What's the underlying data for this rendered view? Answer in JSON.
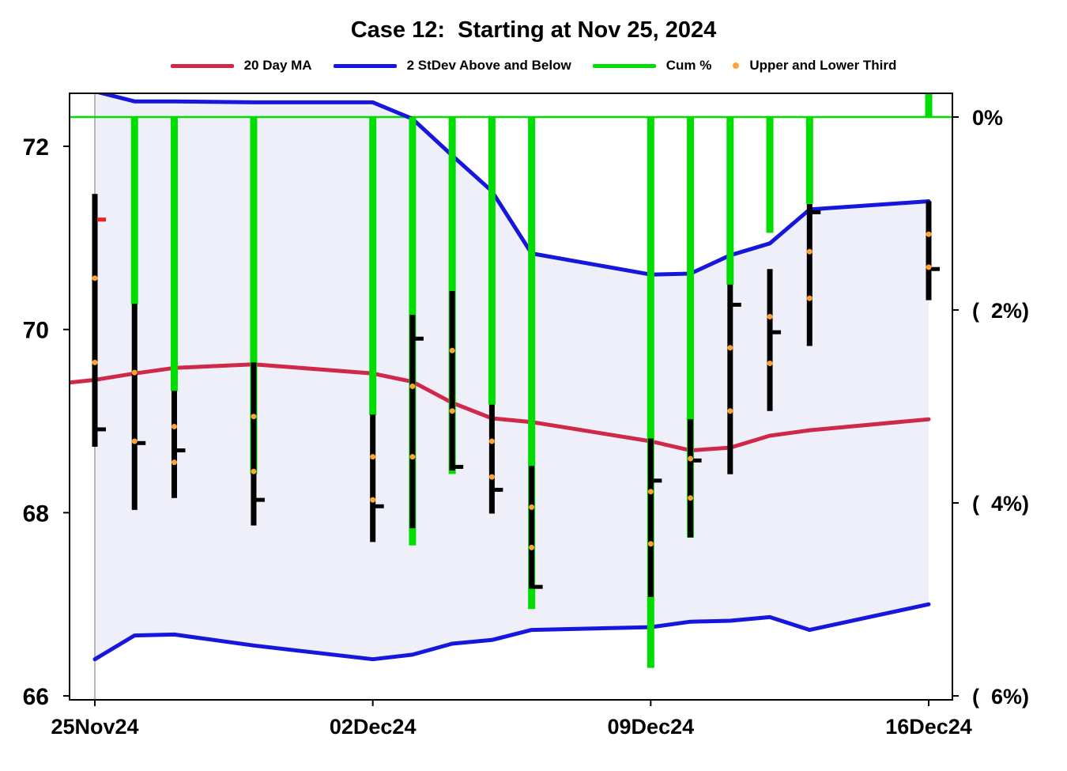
{
  "title": "Case 12:  Starting at Nov 25, 2024",
  "legend": [
    {
      "label": "20 Day MA",
      "color": "#d02848",
      "swatch": "line"
    },
    {
      "label": "2 StDev Above and Below",
      "color": "#1616dd",
      "swatch": "line"
    },
    {
      "label": "Cum %",
      "color": "#00dd00",
      "swatch": "line"
    },
    {
      "label": "Upper and Lower Third",
      "color": "#ffa233",
      "swatch": "dot"
    }
  ],
  "chart_data": {
    "type": "candlestick",
    "title": "Case 12:  Starting at Nov 25, 2024",
    "description": "Daily high-low price bars with close ticks, upper/lower third dots, 20-day moving average, 2-standard-deviation band (shaded), and cumulative % change bars hanging from the 0% line.",
    "x_axis": {
      "tick_labels": [
        "25Nov24",
        "02Dec24",
        "09Dec24",
        "16Dec24"
      ],
      "tick_offsets": [
        0,
        7,
        14,
        21
      ],
      "unit": "calendar days since 25Nov24"
    },
    "price_axis": {
      "side": "left",
      "ticks": [
        66,
        68,
        70,
        72
      ],
      "top_value": 72.58,
      "bottom_value": 65.96
    },
    "pct_axis": {
      "side": "right",
      "tick_labels": [
        "0%",
        "(  2%)",
        "(  4%)",
        "(  6%)"
      ],
      "tick_values": [
        0,
        -2,
        -4,
        -6
      ]
    },
    "start_refline_offset": 0,
    "zero_line_pct": 0,
    "colors": {
      "ma": "#d02848",
      "stdev": "#1616dd",
      "cum": "#00dd00",
      "thirds": "#ffa233",
      "bar": "#000000",
      "red_tick": "#ee2222",
      "band_fill": "#efeffa",
      "refline": "#a3a3a3",
      "frame": "#000000"
    },
    "days": [
      {
        "date": "25Nov24",
        "offset": 0,
        "high": 71.48,
        "low": 68.72,
        "close_tick": 68.91,
        "red_tick": 71.2,
        "cum_pct": 0,
        "upper_third": 70.56,
        "lower_third": 69.64
      },
      {
        "date": "26Nov24",
        "offset": 1,
        "high": 70.28,
        "low": 68.03,
        "close_tick": 68.76,
        "cum_pct": -1.94,
        "upper_third": 69.53,
        "lower_third": 68.78
      },
      {
        "date": "27Nov24",
        "offset": 2,
        "high": 69.33,
        "low": 68.16,
        "close_tick": 68.68,
        "cum_pct": -2.84,
        "upper_third": 68.94,
        "lower_third": 68.55
      },
      {
        "date": "29Nov24",
        "offset": 4,
        "high": 69.64,
        "low": 67.86,
        "close_tick": 68.14,
        "cum_pct": -3.7,
        "upper_third": 69.05,
        "lower_third": 68.45
      },
      {
        "date": "02Dec24",
        "offset": 7,
        "high": 69.07,
        "low": 67.68,
        "close_tick": 68.07,
        "cum_pct": -3.09,
        "upper_third": 68.61,
        "lower_third": 68.14
      },
      {
        "date": "03Dec24",
        "offset": 8,
        "high": 70.16,
        "low": 67.83,
        "close_tick": 69.9,
        "cum_pct": -4.44,
        "upper_third": 69.38,
        "lower_third": 68.61
      },
      {
        "date": "04Dec24",
        "offset": 9,
        "high": 70.42,
        "low": 68.46,
        "close_tick": 68.5,
        "cum_pct": -3.7,
        "upper_third": 69.77,
        "lower_third": 69.11
      },
      {
        "date": "05Dec24",
        "offset": 10,
        "high": 69.18,
        "low": 67.99,
        "close_tick": 68.25,
        "cum_pct": -2.98,
        "upper_third": 68.78,
        "lower_third": 68.39
      },
      {
        "date": "06Dec24",
        "offset": 11,
        "high": 68.51,
        "low": 67.17,
        "close_tick": 67.19,
        "cum_pct": -5.1,
        "upper_third": 68.06,
        "lower_third": 67.62
      },
      {
        "date": "09Dec24",
        "offset": 14,
        "high": 68.81,
        "low": 67.08,
        "close_tick": 68.35,
        "cum_pct": -5.71,
        "upper_third": 68.23,
        "lower_third": 67.66
      },
      {
        "date": "10Dec24",
        "offset": 15,
        "high": 69.02,
        "low": 67.73,
        "close_tick": 68.57,
        "cum_pct": -4.36,
        "upper_third": 68.59,
        "lower_third": 68.16
      },
      {
        "date": "11Dec24",
        "offset": 16,
        "high": 70.49,
        "low": 68.42,
        "close_tick": 70.27,
        "cum_pct": -1.74,
        "upper_third": 69.8,
        "lower_third": 69.11
      },
      {
        "date": "12Dec24",
        "offset": 17,
        "high": 70.66,
        "low": 69.11,
        "close_tick": 69.97,
        "cum_pct": -1.2,
        "upper_third": 70.14,
        "lower_third": 69.63
      },
      {
        "date": "13Dec24",
        "offset": 18,
        "high": 71.37,
        "low": 69.82,
        "close_tick": 71.28,
        "cum_pct": -0.9,
        "upper_third": 70.85,
        "lower_third": 70.34
      },
      {
        "date": "16Dec24",
        "offset": 21,
        "high": 71.4,
        "low": 70.32,
        "close_tick": 70.66,
        "cum_pct": 0.25,
        "upper_third": 71.04,
        "lower_third": 70.68
      }
    ],
    "ma20": {
      "offsets": [
        -0.64,
        0,
        1,
        2,
        4,
        7,
        8,
        9,
        10,
        11,
        14,
        15,
        16,
        17,
        18,
        21
      ],
      "values": [
        69.42,
        69.45,
        69.52,
        69.58,
        69.62,
        69.52,
        69.43,
        69.2,
        69.03,
        68.99,
        68.78,
        68.68,
        68.71,
        68.84,
        68.9,
        69.02
      ]
    },
    "stdev_band": {
      "offsets": [
        0,
        1,
        2,
        4,
        7,
        8,
        9,
        10,
        11,
        14,
        15,
        16,
        17,
        18,
        21
      ],
      "upper": [
        72.6,
        72.49,
        72.49,
        72.48,
        72.48,
        72.3,
        71.9,
        71.51,
        70.83,
        70.6,
        70.61,
        70.81,
        70.94,
        71.31,
        71.4
      ],
      "lower": [
        66.4,
        66.66,
        66.67,
        66.55,
        66.4,
        66.45,
        66.57,
        66.61,
        66.72,
        66.75,
        66.81,
        66.82,
        66.86,
        66.72,
        67.0
      ]
    }
  }
}
